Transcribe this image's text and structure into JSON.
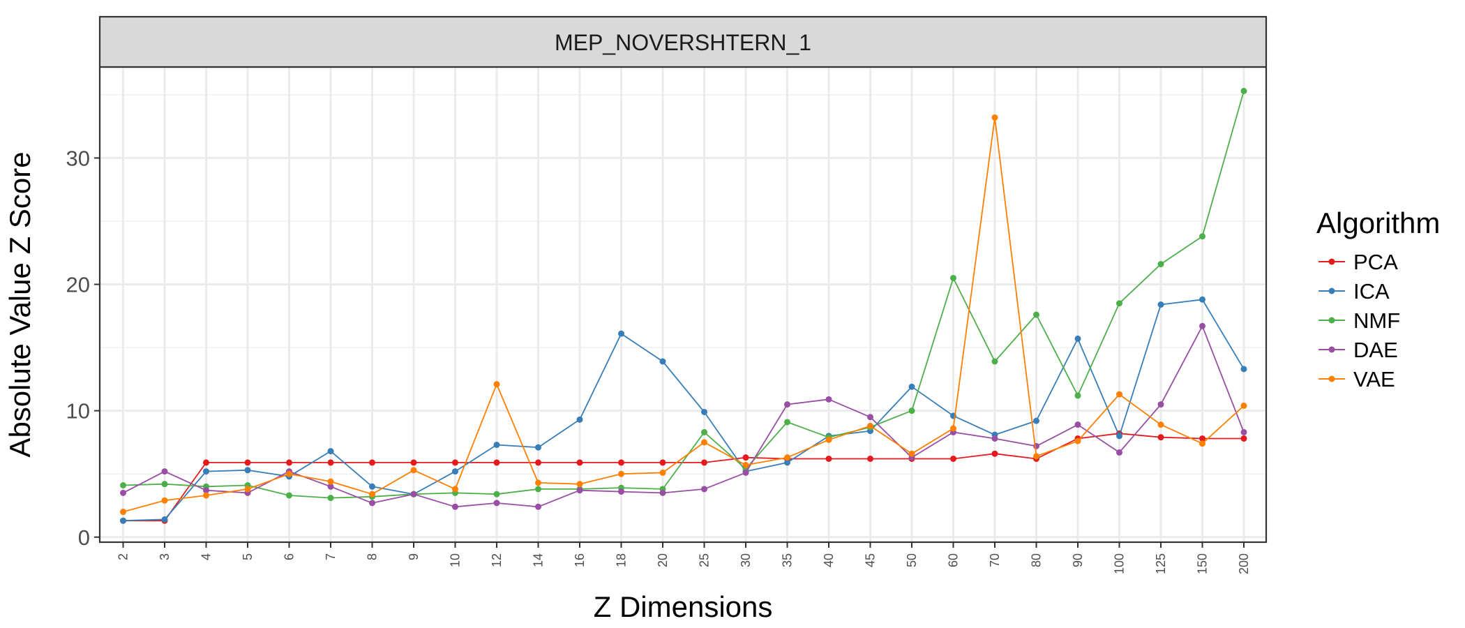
{
  "chart_data": {
    "type": "line",
    "facet_title": "MEP_NOVERSHTERN_1",
    "xlabel": "Z Dimensions",
    "ylabel": "Absolute Value Z Score",
    "categories": [
      "2",
      "3",
      "4",
      "5",
      "6",
      "7",
      "8",
      "9",
      "10",
      "12",
      "14",
      "16",
      "18",
      "20",
      "25",
      "30",
      "35",
      "40",
      "45",
      "50",
      "60",
      "70",
      "80",
      "90",
      "100",
      "125",
      "150",
      "200"
    ],
    "y_ticks": [
      0,
      10,
      20,
      30
    ],
    "ylim": [
      -0.4,
      37.2
    ],
    "grid": true,
    "legend": {
      "title": "Algorithm",
      "position": "right"
    },
    "series": [
      {
        "name": "PCA",
        "color": "#e41a1c",
        "values": [
          1.3,
          1.3,
          5.9,
          5.9,
          5.9,
          5.9,
          5.9,
          5.9,
          5.9,
          5.9,
          5.9,
          5.9,
          5.9,
          5.9,
          5.9,
          6.3,
          6.2,
          6.2,
          6.2,
          6.2,
          6.2,
          6.6,
          6.2,
          7.8,
          8.2,
          7.9,
          7.8,
          7.8
        ]
      },
      {
        "name": "ICA",
        "color": "#377eb8",
        "values": [
          1.3,
          1.4,
          5.2,
          5.3,
          4.8,
          6.8,
          4.0,
          3.4,
          5.2,
          7.3,
          7.1,
          9.3,
          16.1,
          13.9,
          9.9,
          5.2,
          5.9,
          8.0,
          8.4,
          11.9,
          9.6,
          8.1,
          9.2,
          15.7,
          8.0,
          18.4,
          18.8,
          13.3
        ]
      },
      {
        "name": "NMF",
        "color": "#4daf4a",
        "values": [
          4.1,
          4.2,
          4.0,
          4.1,
          3.3,
          3.1,
          3.2,
          3.4,
          3.5,
          3.4,
          3.8,
          3.8,
          3.9,
          3.8,
          8.3,
          5.4,
          9.1,
          7.9,
          8.7,
          10.0,
          20.5,
          13.9,
          17.6,
          11.2,
          18.5,
          21.6,
          23.8,
          35.3
        ]
      },
      {
        "name": "DAE",
        "color": "#984ea3",
        "values": [
          3.5,
          5.2,
          3.7,
          3.5,
          5.2,
          4.0,
          2.7,
          3.4,
          2.4,
          2.7,
          2.4,
          3.7,
          3.6,
          3.5,
          3.8,
          5.1,
          10.5,
          10.9,
          9.5,
          6.3,
          8.3,
          7.8,
          7.2,
          8.9,
          6.7,
          10.5,
          16.7,
          8.3
        ]
      },
      {
        "name": "VAE",
        "color": "#ff7f00",
        "values": [
          2.0,
          2.9,
          3.3,
          3.8,
          5.0,
          4.4,
          3.4,
          5.3,
          3.8,
          12.1,
          4.3,
          4.2,
          5.0,
          5.1,
          7.5,
          5.7,
          6.3,
          7.7,
          8.8,
          6.6,
          8.6,
          33.2,
          6.4,
          7.6,
          11.3,
          8.9,
          7.4,
          10.4
        ]
      }
    ]
  }
}
